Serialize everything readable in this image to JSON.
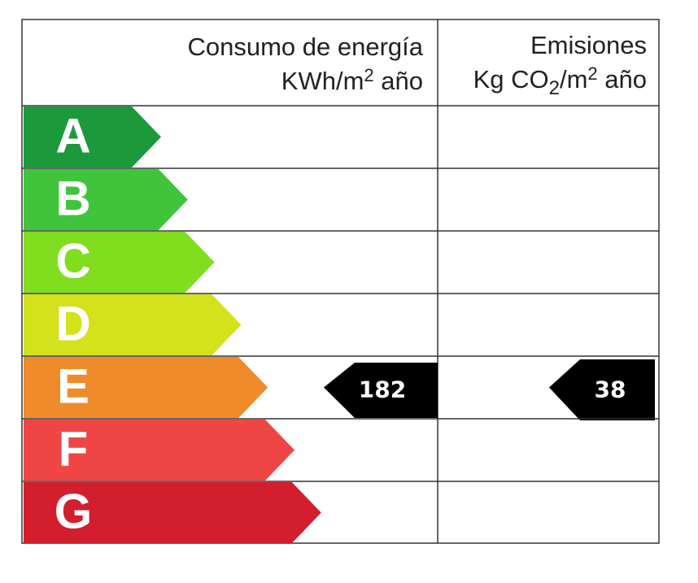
{
  "header": {
    "consumption": {
      "title": "Consumo de energía",
      "unit": [
        "KWh/m",
        "2",
        " año"
      ]
    },
    "emissions": {
      "title": "Emisiones",
      "unit": [
        "Kg CO",
        "2",
        "/m",
        "2",
        " año"
      ]
    }
  },
  "rows": [
    {
      "letter": "A",
      "color": "#1c9a3b"
    },
    {
      "letter": "B",
      "color": "#3fc43c"
    },
    {
      "letter": "C",
      "color": "#80de1e"
    },
    {
      "letter": "D",
      "color": "#d3e21b"
    },
    {
      "letter": "E",
      "color": "#f08b2b",
      "consumption": 182,
      "emissions": 38
    },
    {
      "letter": "F",
      "color": "#ef4545"
    },
    {
      "letter": "G",
      "color": "#d21e2d"
    }
  ]
}
